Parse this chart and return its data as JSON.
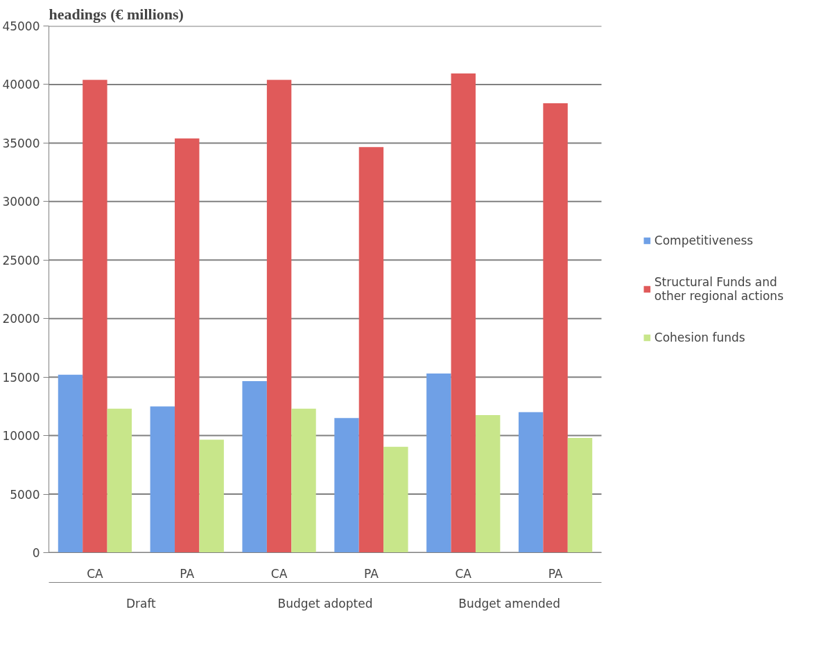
{
  "chart_data": {
    "type": "bar",
    "title": "headings (€ millions)",
    "categories": [
      "CA",
      "PA",
      "CA",
      "PA",
      "CA",
      "PA"
    ],
    "annotations": [
      "Draft",
      "Budget adopted",
      "Budget amended"
    ],
    "series": [
      {
        "name": "Competitiveness",
        "color": "#6fa0e6",
        "values": [
          15200,
          12500,
          14650,
          11500,
          15300,
          12000
        ]
      },
      {
        "name": "Structural Funds and other regional actions",
        "color": "#e05a5a",
        "values": [
          40400,
          35400,
          40400,
          34650,
          40950,
          38400
        ]
      },
      {
        "name": "Cohesion funds",
        "color": "#c8e68a",
        "values": [
          12300,
          9650,
          12300,
          9050,
          11750,
          9800
        ]
      }
    ],
    "ylim": [
      0,
      45000
    ],
    "yticks": [
      0,
      5000,
      10000,
      15000,
      20000,
      25000,
      30000,
      35000,
      40000,
      45000
    ],
    "grid": "y",
    "legend": "right"
  }
}
